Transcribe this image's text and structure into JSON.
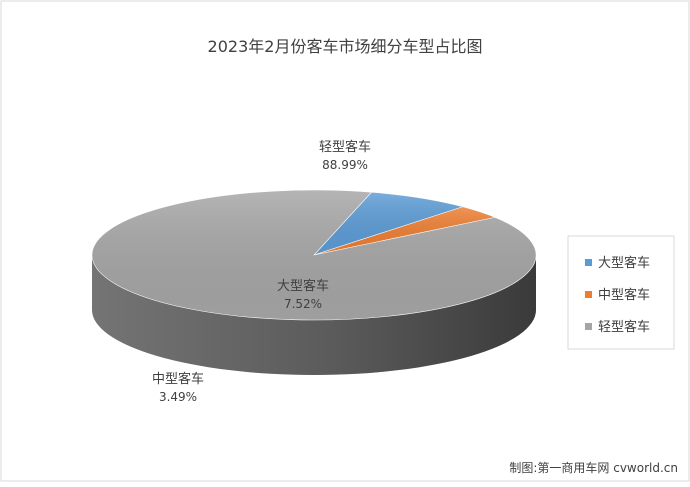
{
  "chart_data": {
    "type": "pie",
    "title": "2023年2月份客车市场细分车型占比图",
    "slices": [
      {
        "name": "大型客车",
        "value": 7.52,
        "label": "7.52%",
        "color": "#5b9bd5"
      },
      {
        "name": "中型客车",
        "value": 3.49,
        "label": "3.49%",
        "color": "#ed7d31"
      },
      {
        "name": "轻型客车",
        "value": 88.99,
        "label": "88.99%",
        "color": "#a5a5a5"
      }
    ],
    "legend": {
      "position": "right",
      "items": [
        "大型客车",
        "中型客车",
        "轻型客车"
      ]
    },
    "three_d": true
  },
  "credit": "制图:第一商用车网 cvworld.cn"
}
